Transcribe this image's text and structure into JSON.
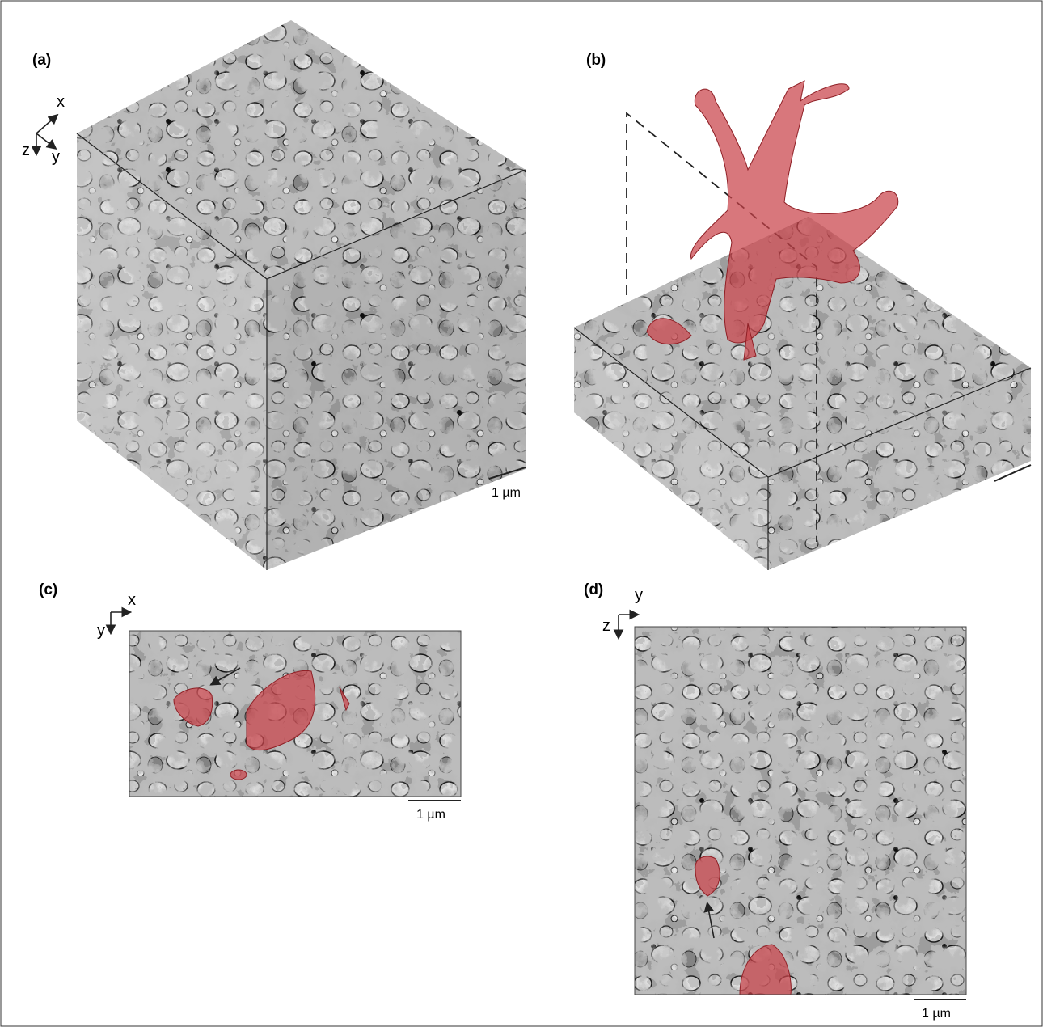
{
  "panels": [
    {
      "label": "(a)",
      "axes": [
        "x",
        "y",
        "z"
      ],
      "scale_bar": "1 µm"
    },
    {
      "label": "(b)"
    },
    {
      "label": "(c)",
      "axes": [
        "x",
        "y"
      ],
      "scale_bar": "1 µm"
    },
    {
      "label": "(d)",
      "axes": [
        "y",
        "z"
      ],
      "scale_bar": "1 µm"
    }
  ]
}
